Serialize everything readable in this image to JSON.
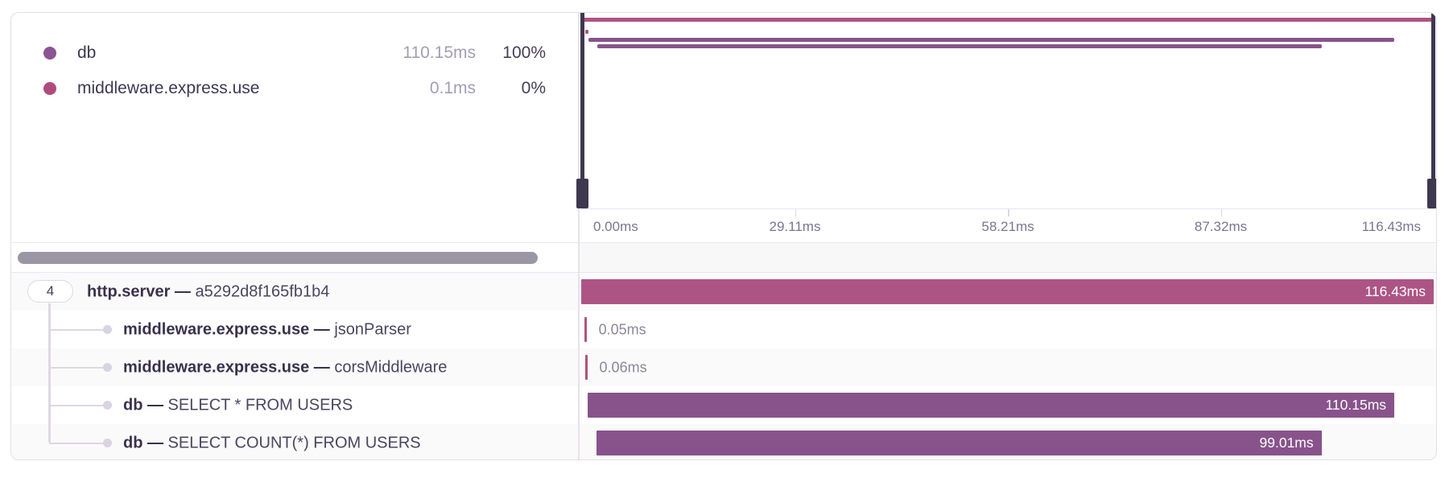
{
  "legend": {
    "items": [
      {
        "label": "db",
        "color": "#8b5494",
        "duration": "110.15ms",
        "percent": "100%"
      },
      {
        "label": "middleware.express.use",
        "color": "#b04a7d",
        "duration": "0.1ms",
        "percent": "0%"
      }
    ]
  },
  "tree": {
    "separator": "—",
    "badge": "4"
  },
  "chart_data": {
    "type": "trace-waterfall",
    "title": "",
    "total_ms": 116.43,
    "axis_ticks": [
      {
        "label": "0.00ms",
        "pct": 0
      },
      {
        "label": "29.11ms",
        "pct": 25
      },
      {
        "label": "58.21ms",
        "pct": 50
      },
      {
        "label": "87.32ms",
        "pct": 75
      },
      {
        "label": "116.43ms",
        "pct": 100
      }
    ],
    "spans": [
      {
        "name": "http.server",
        "detail": "a5292d8f165fb1b4",
        "badge": "4",
        "start_ms": 0.0,
        "duration_ms": 116.43,
        "duration_label": "116.43ms",
        "color": "#ac5585",
        "label_inside": true,
        "depth": 0
      },
      {
        "name": "middleware.express.use",
        "detail": "jsonParser",
        "start_ms": 0.4,
        "duration_ms": 0.05,
        "duration_label": "0.05ms",
        "color": "#b1517e",
        "label_inside": false,
        "depth": 1
      },
      {
        "name": "middleware.express.use",
        "detail": "corsMiddleware",
        "start_ms": 0.5,
        "duration_ms": 0.06,
        "duration_label": "0.06ms",
        "color": "#b1517e",
        "label_inside": false,
        "depth": 1
      },
      {
        "name": "db",
        "detail": "SELECT * FROM USERS",
        "start_ms": 0.9,
        "duration_ms": 110.15,
        "duration_label": "110.15ms",
        "color": "#88538b",
        "label_inside": true,
        "depth": 1
      },
      {
        "name": "db",
        "detail": "SELECT COUNT(*) FROM USERS",
        "start_ms": 2.1,
        "duration_ms": 99.01,
        "duration_label": "99.01ms",
        "color": "#88538b",
        "label_inside": true,
        "depth": 1
      }
    ]
  }
}
